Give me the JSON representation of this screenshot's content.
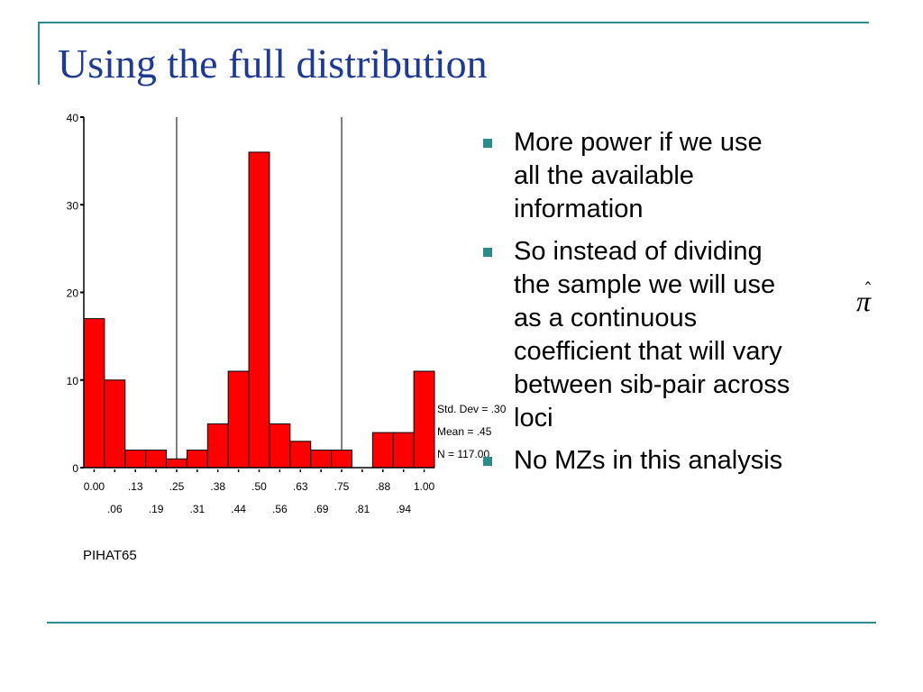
{
  "slide": {
    "title": "Using the full distribution"
  },
  "bullets": [
    {
      "lines": [
        "More power if we use",
        "all the available",
        "information"
      ]
    },
    {
      "lines": [
        "So instead of dividing",
        "the sample we will use",
        "as a continuous",
        "coefficient that will vary",
        "between sib-pair across",
        "loci"
      ]
    },
    {
      "lines": [
        "No MZs in this analysis"
      ]
    }
  ],
  "symbol": {
    "text": "π",
    "hat": "ˆ"
  },
  "colors": {
    "title": "#1F3A93",
    "accent": "#2E8B8B",
    "bar": "#FF0000"
  },
  "chart_data": {
    "type": "bar",
    "xlabel": "PIHAT65",
    "ylabel": "",
    "ylim": [
      0,
      40
    ],
    "yticks": [
      0,
      10,
      20,
      30,
      40
    ],
    "categories": [
      "0.00",
      ".06",
      ".13",
      ".19",
      ".25",
      ".31",
      ".38",
      ".44",
      ".50",
      ".56",
      ".63",
      ".69",
      ".75",
      ".81",
      ".88",
      ".94",
      "1.00"
    ],
    "values": [
      17,
      10,
      2,
      2,
      1,
      2,
      5,
      11,
      36,
      5,
      3,
      2,
      2,
      0,
      4,
      4,
      11
    ],
    "reference_lines_x": [
      ".25",
      ".75"
    ],
    "stats": [
      "Std. Dev = .30",
      "Mean = .45",
      "N = 117.00"
    ]
  }
}
